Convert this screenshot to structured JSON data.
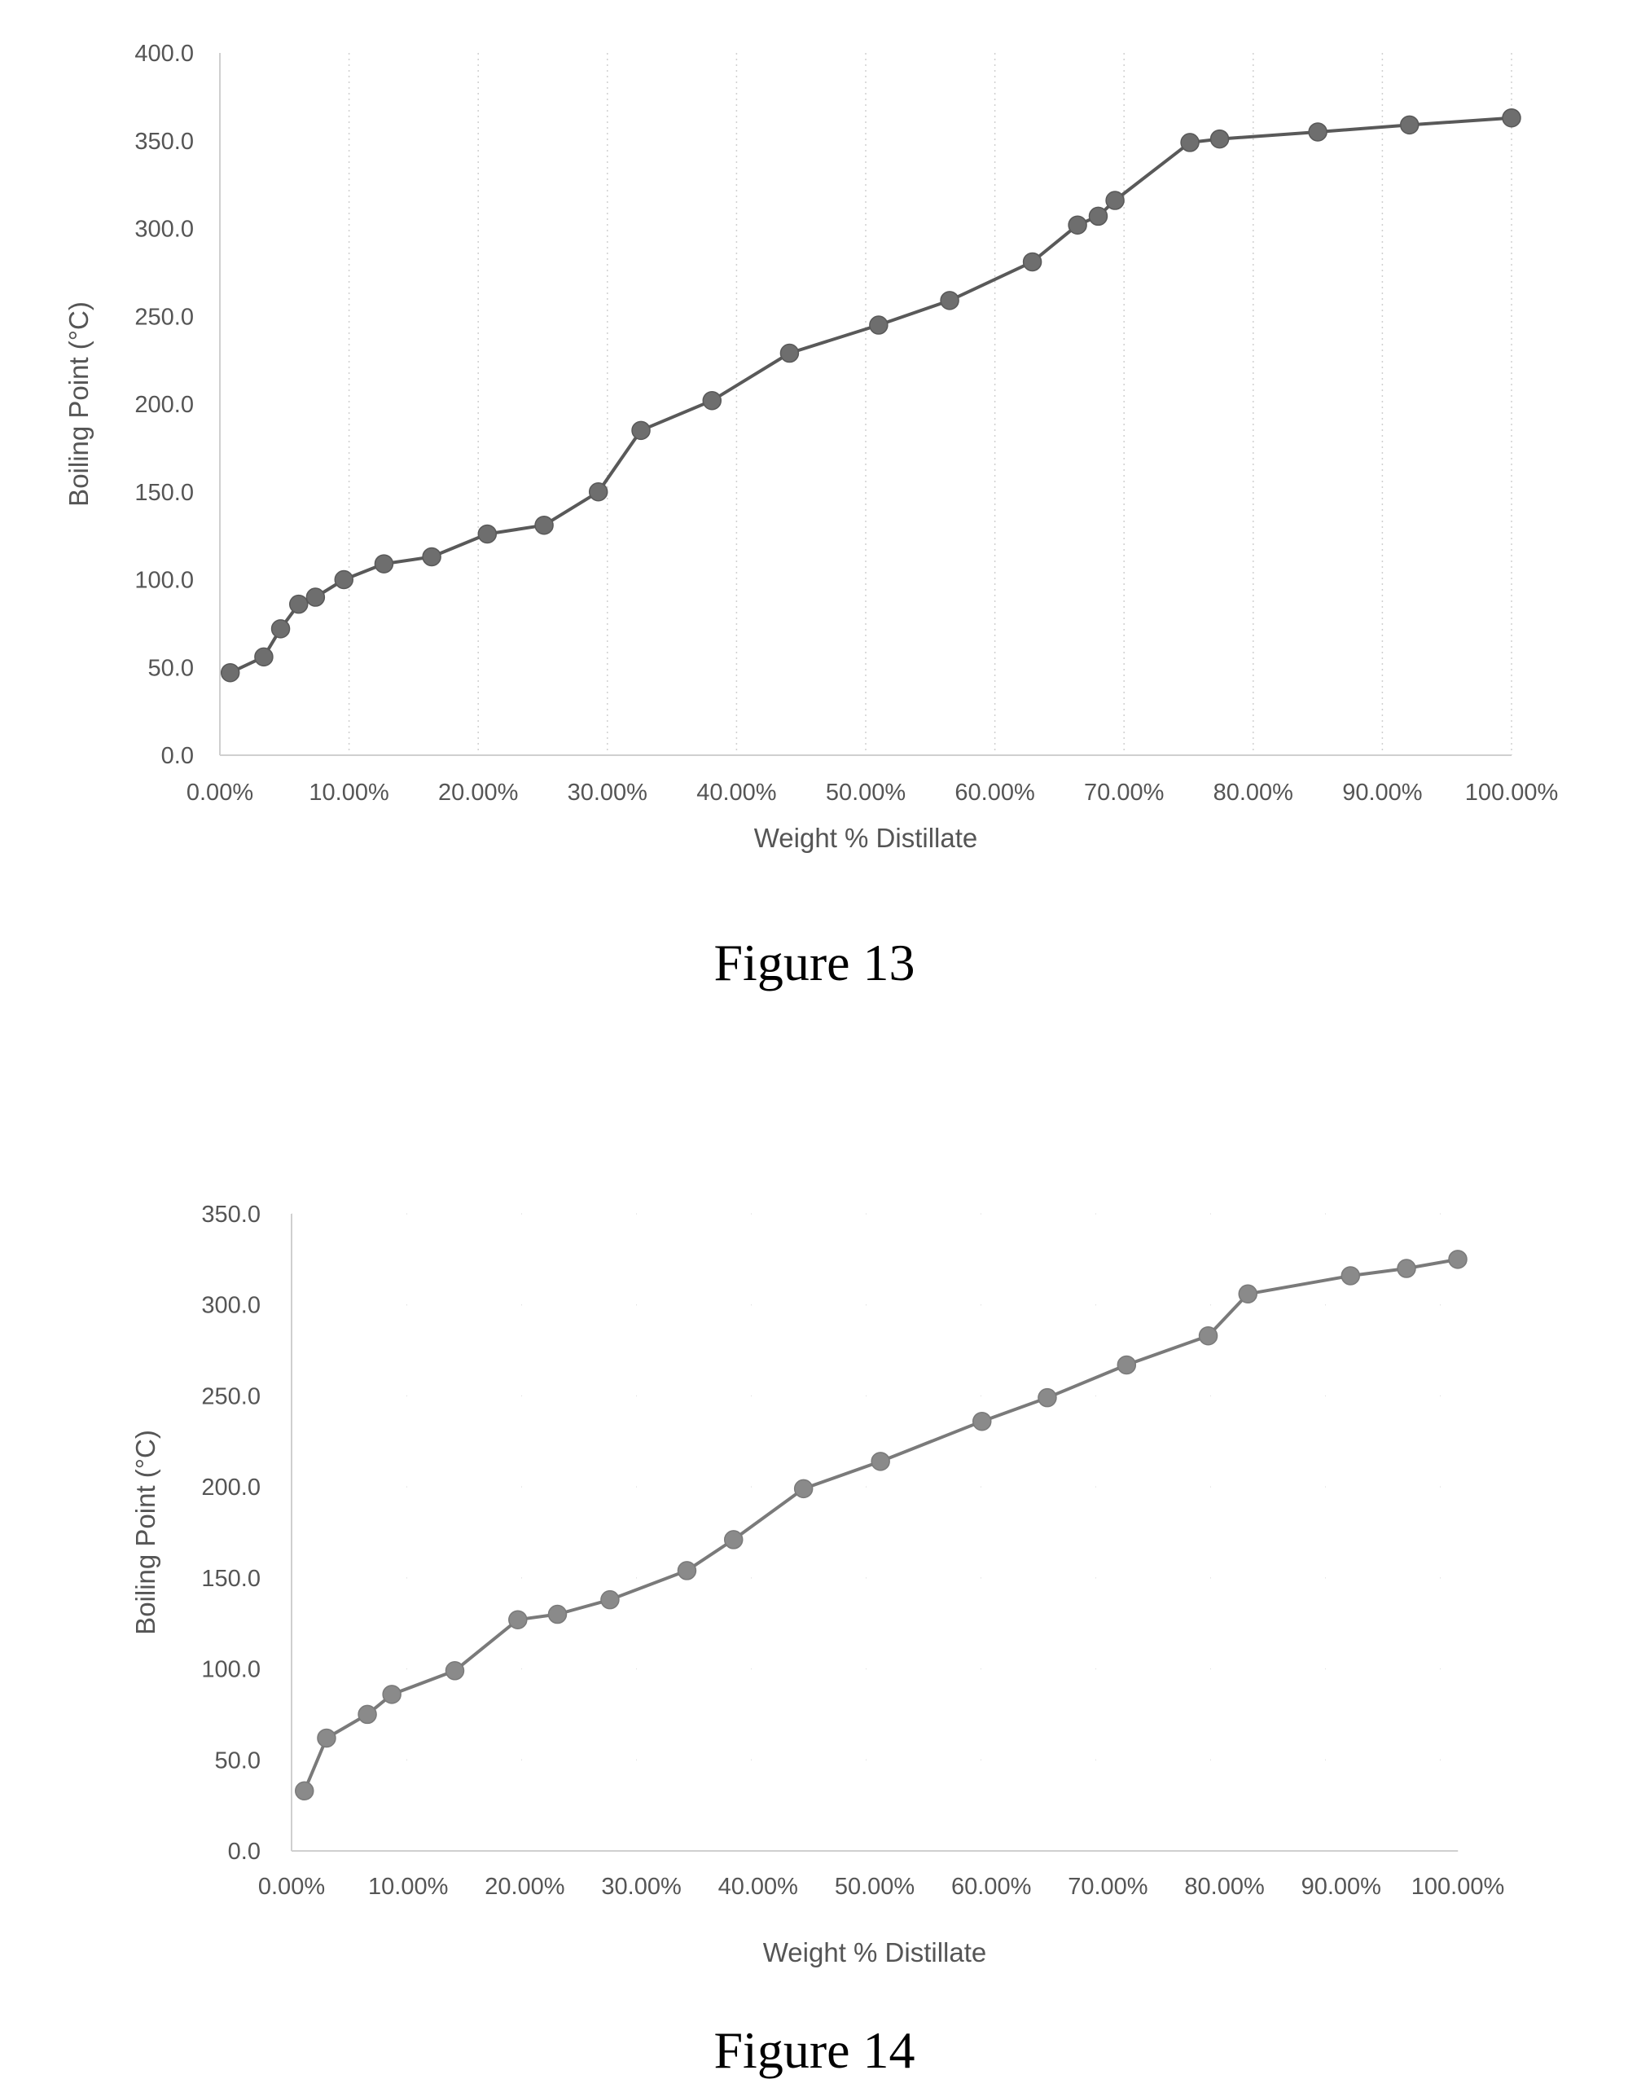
{
  "chart_data": [
    {
      "type": "line",
      "caption": "Figure 13",
      "xlabel": "Weight % Distillate",
      "ylabel": "Boiling Point (°C)",
      "xlim": [
        0,
        100
      ],
      "ylim": [
        0,
        400
      ],
      "x_ticks": [
        0,
        10,
        20,
        30,
        40,
        50,
        60,
        70,
        80,
        90,
        100
      ],
      "x_tick_labels": [
        "0.00%",
        "10.00%",
        "20.00%",
        "30.00%",
        "40.00%",
        "50.00%",
        "60.00%",
        "70.00%",
        "80.00%",
        "90.00%",
        "100.00%"
      ],
      "y_ticks": [
        0,
        50,
        100,
        150,
        200,
        250,
        300,
        350,
        400
      ],
      "y_tick_labels": [
        "0.0",
        "50.0",
        "100.0",
        "150.0",
        "200.0",
        "250.0",
        "300.0",
        "350.0",
        "400.0"
      ],
      "grid": "vertical dotted",
      "colors": {
        "line": "#595959",
        "marker": "#6e6e6e",
        "grid": "#d0d0d0",
        "axis": "#cfcfcf"
      },
      "series": [
        {
          "x": [
            0.8,
            3.4,
            4.7,
            6.1,
            7.4,
            9.6,
            12.7,
            16.4,
            20.7,
            25.1,
            29.3,
            32.6,
            38.1,
            44.1,
            51.0,
            56.5,
            62.9,
            66.4,
            68.0,
            69.3,
            75.1,
            77.4,
            85.0,
            92.1,
            100.0
          ],
          "y": [
            47,
            56,
            72,
            86,
            90,
            100,
            109,
            113,
            126,
            131,
            150,
            185,
            202,
            229,
            245,
            259,
            281,
            302,
            307,
            316,
            349,
            351,
            355,
            359,
            363
          ]
        }
      ]
    },
    {
      "type": "line",
      "caption": "Figure 14",
      "xlabel": "Weight % Distillate",
      "ylabel": "Boiling Point (°C)",
      "xlim": [
        0,
        100
      ],
      "ylim": [
        0,
        350
      ],
      "x_ticks": [
        0,
        10,
        20,
        30,
        40,
        50,
        60,
        70,
        80,
        90,
        100
      ],
      "x_tick_labels": [
        "0.00%",
        "10.00%",
        "20.00%",
        "30.00%",
        "40.00%",
        "50.00%",
        "60.00%",
        "70.00%",
        "80.00%",
        "90.00%",
        "100.00%"
      ],
      "y_ticks": [
        0,
        50,
        100,
        150,
        200,
        250,
        300,
        350
      ],
      "y_tick_labels": [
        "0.0",
        "50.0",
        "100.0",
        "150.0",
        "200.0",
        "250.0",
        "300.0",
        "350.0"
      ],
      "grid": "faint dotted",
      "colors": {
        "line": "#7a7a7a",
        "marker": "#8a8a8a",
        "grid": "#dddddd",
        "axis": "#cfcfcf"
      },
      "series": [
        {
          "x": [
            1.1,
            3.0,
            6.5,
            8.6,
            14.0,
            19.4,
            22.8,
            27.3,
            33.9,
            37.9,
            43.9,
            50.5,
            59.2,
            64.8,
            71.6,
            78.6,
            82.0,
            90.8,
            95.6,
            100.0
          ],
          "y": [
            33,
            62,
            75,
            86,
            99,
            127,
            130,
            138,
            154,
            171,
            199,
            214,
            236,
            249,
            267,
            283,
            306,
            316,
            320,
            325
          ]
        }
      ]
    }
  ]
}
